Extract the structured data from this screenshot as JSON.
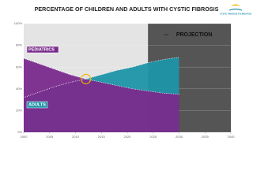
{
  "chart_data": {
    "type": "area",
    "title": "PERCENTAGE OF CHILDREN AND ADULTS WITH CYSTIC FIBROSIS",
    "logo": "CYSTIC FIBROSIS FOUNDATION",
    "x": [
      2000,
      2003,
      2006,
      2009,
      2012,
      2015,
      2018,
      2021,
      2024,
      2027,
      2030
    ],
    "series": [
      {
        "name": "ADULTS",
        "color": "#1e93a8",
        "values": [
          32,
          37,
          42,
          46,
          49,
          53,
          57,
          60,
          64,
          67,
          69
        ]
      },
      {
        "name": "PEDIATRICS",
        "color": "#7a2a8c",
        "values": [
          68,
          63,
          58,
          53,
          49,
          46,
          43,
          40,
          38,
          36,
          35
        ]
      }
    ],
    "projection": {
      "label": "PROJECTION",
      "start": 2024
    },
    "xlim": [
      2000,
      2040
    ],
    "xticks": [
      2000,
      2005,
      2010,
      2015,
      2020,
      2025,
      2030,
      2035,
      2040
    ],
    "ylim": [
      0,
      100
    ],
    "yticks": [
      {
        "value": 0,
        "label": "0%"
      },
      {
        "value": 20,
        "label": "20%"
      },
      {
        "value": 40,
        "label": "40%"
      },
      {
        "value": 60,
        "label": "60%"
      },
      {
        "value": 80,
        "label": "80%"
      },
      {
        "value": 100,
        "label": "100%"
      }
    ]
  }
}
